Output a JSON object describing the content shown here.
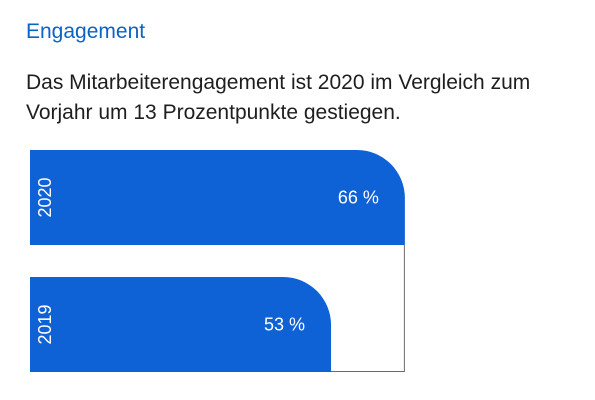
{
  "header": {
    "title": "Engagement",
    "subtitle": "Das Mitarbeiterengagement ist 2020 im Vergleich zum Vorjahr um 13 Prozentpunkte gestiegen."
  },
  "colors": {
    "accent": "#0b63c4",
    "bar": "#0f61d6",
    "outline": "#6a6a6a",
    "text": "#1e1e1e"
  },
  "chart_data": {
    "type": "bar",
    "orientation": "horizontal",
    "categories": [
      "2020",
      "2019"
    ],
    "values": [
      66,
      53
    ],
    "value_labels": [
      "66 %",
      "53 %"
    ],
    "xlim": [
      0,
      100
    ],
    "grid": false,
    "legend": "none"
  }
}
